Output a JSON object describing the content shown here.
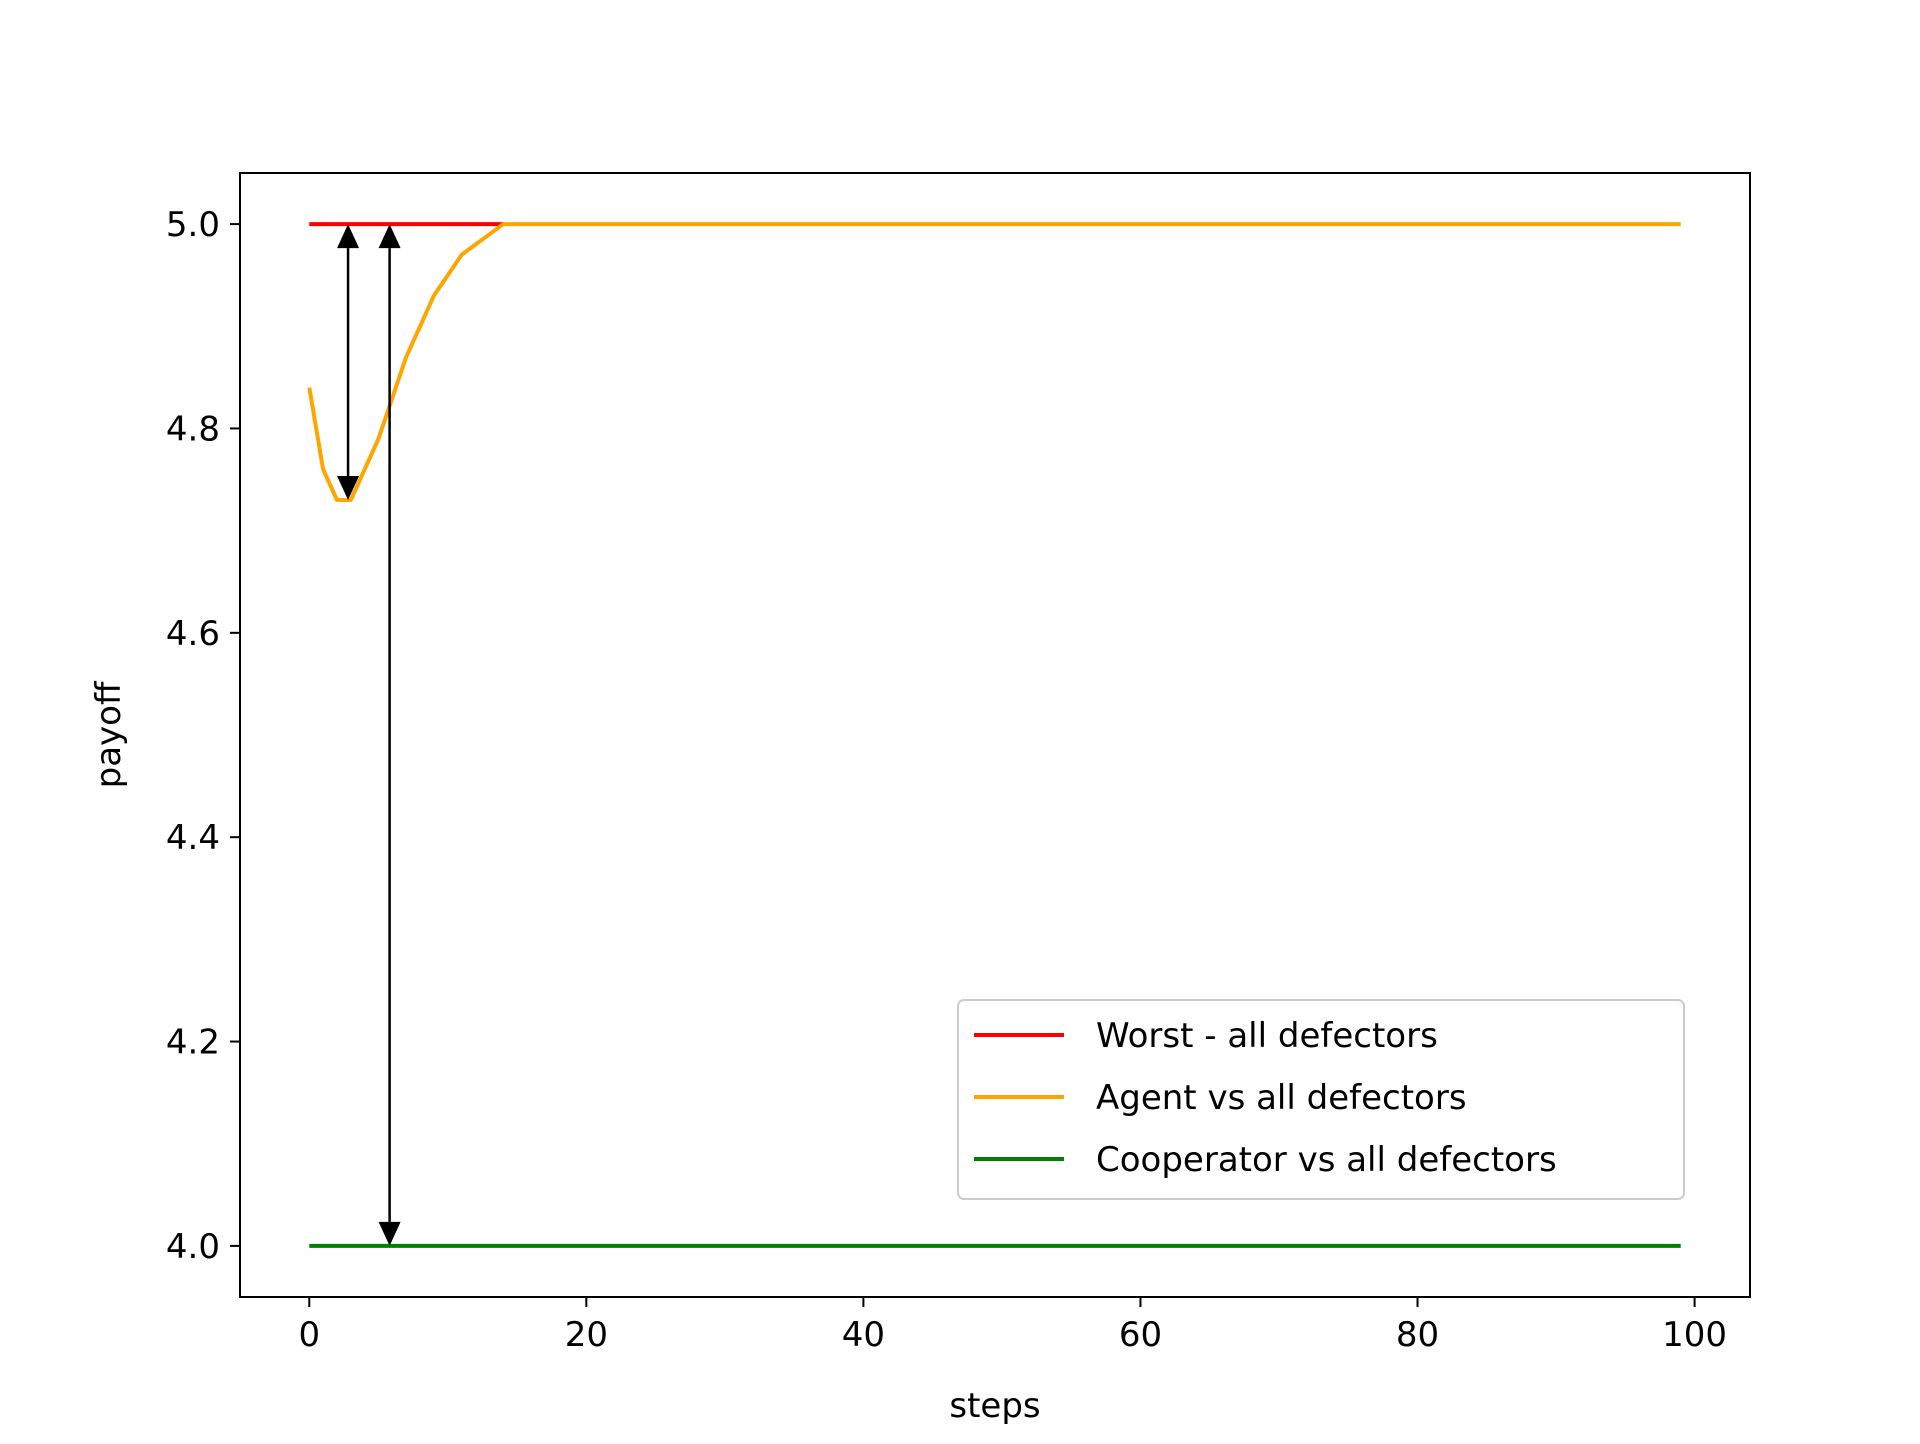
{
  "chart_data": {
    "type": "line",
    "title": "",
    "xlabel": "steps",
    "ylabel": "payoff",
    "xlim": [
      -5,
      104
    ],
    "ylim": [
      3.95,
      5.05
    ],
    "x_ticks": [
      0,
      20,
      40,
      60,
      80,
      100
    ],
    "x_tick_labels": [
      "0",
      "20",
      "40",
      "60",
      "80",
      "100"
    ],
    "y_ticks": [
      4.0,
      4.2,
      4.4,
      4.6,
      4.8,
      5.0
    ],
    "y_tick_labels": [
      "4.0",
      "4.2",
      "4.4",
      "4.6",
      "4.8",
      "5.0"
    ],
    "grid": false,
    "legend_position": "lower-right",
    "series": [
      {
        "name": "Worst - all defectors",
        "color": "#ff0000",
        "x": [
          0,
          14
        ],
        "y": [
          5.0,
          5.0
        ]
      },
      {
        "name": "Agent vs all defectors",
        "color": "#ffa500",
        "x": [
          0,
          1,
          2,
          3,
          4,
          5,
          6,
          7,
          8,
          9,
          10,
          11,
          12,
          13,
          14,
          20,
          40,
          60,
          80,
          99
        ],
        "y": [
          4.84,
          4.76,
          4.73,
          4.73,
          4.76,
          4.79,
          4.83,
          4.87,
          4.9,
          4.93,
          4.95,
          4.97,
          4.98,
          4.99,
          5.0,
          5.0,
          5.0,
          5.0,
          5.0,
          5.0
        ]
      },
      {
        "name": "Cooperator vs all defectors",
        "color": "#008000",
        "x": [
          0,
          99
        ],
        "y": [
          4.0,
          4.0
        ]
      }
    ],
    "annotations": [
      {
        "type": "double-arrow",
        "x": 2.8,
        "y_from": 5.0,
        "y_to": 4.73,
        "color": "#000000"
      },
      {
        "type": "double-arrow",
        "x": 5.8,
        "y_from": 5.0,
        "y_to": 4.0,
        "color": "#000000"
      }
    ]
  }
}
